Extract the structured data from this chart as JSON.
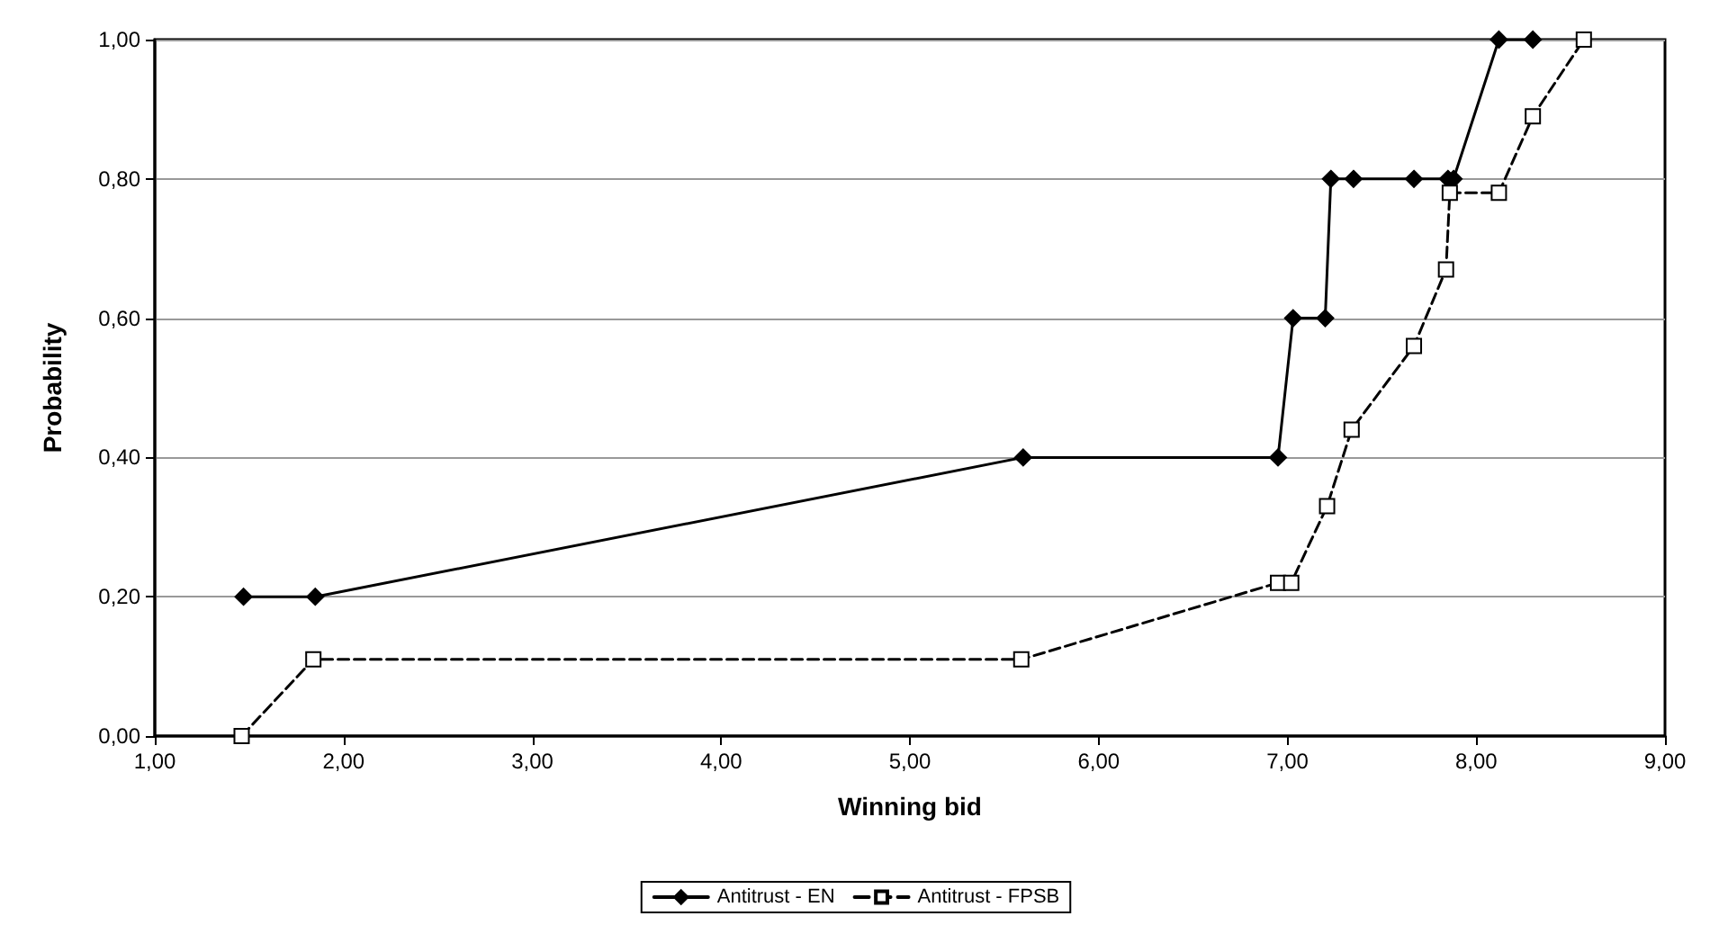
{
  "chart_data": {
    "type": "line",
    "xlabel": "Winning bid",
    "ylabel": "Probability",
    "xlim": [
      1,
      9
    ],
    "ylim": [
      0,
      1
    ],
    "xticks": [
      {
        "value": 1,
        "label": "1,00"
      },
      {
        "value": 2,
        "label": "2,00"
      },
      {
        "value": 3,
        "label": "3,00"
      },
      {
        "value": 4,
        "label": "4,00"
      },
      {
        "value": 5,
        "label": "5,00"
      },
      {
        "value": 6,
        "label": "6,00"
      },
      {
        "value": 7,
        "label": "7,00"
      },
      {
        "value": 8,
        "label": "8,00"
      },
      {
        "value": 9,
        "label": "9,00"
      }
    ],
    "yticks": [
      {
        "value": 0,
        "label": "0,00"
      },
      {
        "value": 0.2,
        "label": "0,20"
      },
      {
        "value": 0.4,
        "label": "0,40"
      },
      {
        "value": 0.6,
        "label": "0,60"
      },
      {
        "value": 0.8,
        "label": "0,80"
      },
      {
        "value": 1,
        "label": "1,00"
      }
    ],
    "grid": "y",
    "legend": "bottom",
    "series": [
      {
        "name": "Antitrust - EN",
        "color": "#000000",
        "marker": "diamond",
        "line_style": "solid",
        "x": [
          1.47,
          1.85,
          5.6,
          6.95,
          7.03,
          7.2,
          7.23,
          7.35,
          7.67,
          7.85,
          7.88,
          8.12,
          8.3
        ],
        "values": [
          0.2,
          0.2,
          0.4,
          0.4,
          0.6,
          0.6,
          0.8,
          0.8,
          0.8,
          0.8,
          0.8,
          1,
          1
        ]
      },
      {
        "name": "Antitrust - FPSB",
        "color": "#000000",
        "marker": "square",
        "line_style": "dashed",
        "x": [
          1.46,
          1.84,
          5.59,
          6.95,
          7.02,
          7.21,
          7.34,
          7.67,
          7.84,
          7.86,
          8.12,
          8.3,
          8.57
        ],
        "values": [
          0,
          0.11,
          0.11,
          0.22,
          0.22,
          0.33,
          0.44,
          0.56,
          0.67,
          0.78,
          0.78,
          0.89,
          1
        ]
      }
    ]
  }
}
